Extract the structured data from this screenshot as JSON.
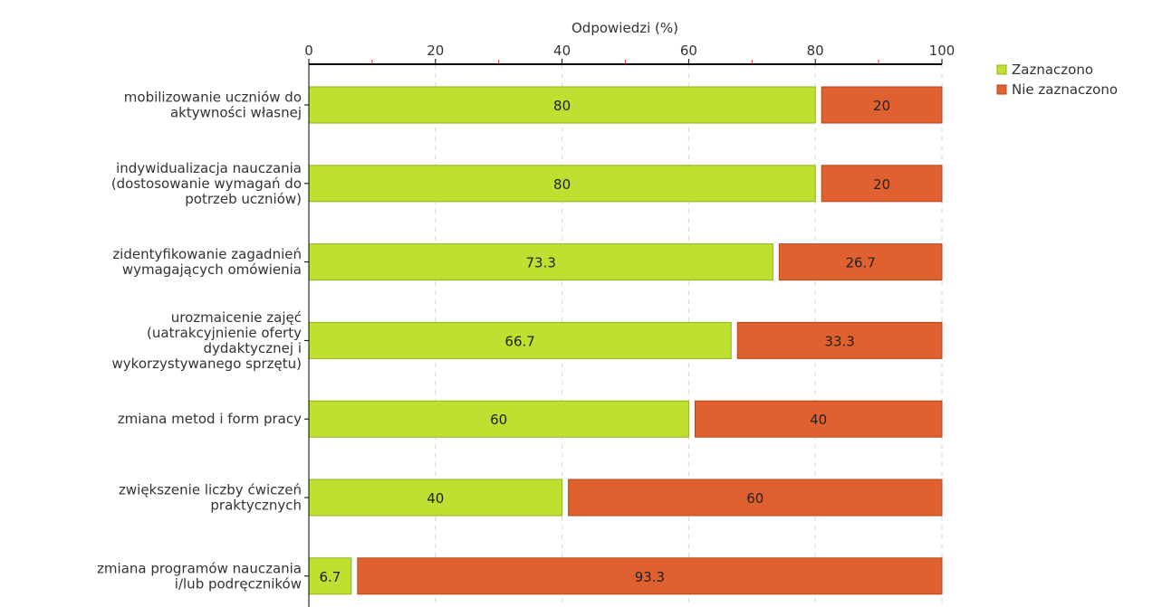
{
  "chart_data": {
    "type": "bar",
    "orientation": "horizontal",
    "stacked": true,
    "xlabel": "Odpowiedzi (%)",
    "xlim": [
      0,
      100
    ],
    "xticks": [
      0,
      20,
      40,
      60,
      80,
      100
    ],
    "grid": true,
    "legend_position": "top-right",
    "categories": [
      [
        "mobilizowanie uczniów do",
        "aktywności własnej"
      ],
      [
        "indywidualizacja nauczania",
        "(dostosowanie wymagań do",
        "potrzeb uczniów)"
      ],
      [
        "zidentyfikowanie zagadnień",
        "wymagających omówienia"
      ],
      [
        "urozmaicenie zajęć",
        "(uatrakcyjnienie oferty",
        "dydaktycznej i",
        "wykorzystywanego sprzętu)"
      ],
      [
        "zmiana metod i form pracy"
      ],
      [
        "zwiększenie liczby ćwiczeń",
        "praktycznych"
      ],
      [
        "zmiana programów nauczania",
        "i/lub podręczników"
      ]
    ],
    "series": [
      {
        "name": "Zaznaczono",
        "color": "#bfe030",
        "stroke": "#8fb41a",
        "values": [
          80,
          80,
          73.3,
          66.7,
          60,
          40,
          6.7
        ]
      },
      {
        "name": "Nie zaznaczono",
        "color": "#e06130",
        "stroke": "#b84418",
        "values": [
          20,
          20,
          26.7,
          33.3,
          40,
          60,
          93.3
        ]
      }
    ]
  }
}
